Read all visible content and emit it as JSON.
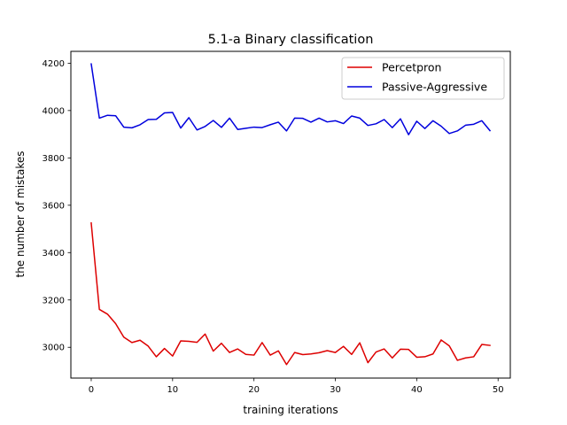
{
  "chart_data": {
    "type": "line",
    "title": "5.1-a Binary classification",
    "xlabel": "training iterations",
    "ylabel": "the number of mistakes",
    "xlim": [
      -2.5,
      51.5
    ],
    "ylim": [
      2870,
      4250
    ],
    "xticks": [
      0,
      10,
      20,
      30,
      40,
      50
    ],
    "yticks": [
      3000,
      3200,
      3400,
      3600,
      3800,
      4000,
      4200
    ],
    "grid": false,
    "legend": "top-right",
    "x": [
      0,
      1,
      2,
      3,
      4,
      5,
      6,
      7,
      8,
      9,
      10,
      11,
      12,
      13,
      14,
      15,
      16,
      17,
      18,
      19,
      20,
      21,
      22,
      23,
      24,
      25,
      26,
      27,
      28,
      29,
      30,
      31,
      32,
      33,
      34,
      35,
      36,
      37,
      38,
      39,
      40,
      41,
      42,
      43,
      44,
      45,
      46,
      47,
      48,
      49
    ],
    "series": [
      {
        "name": "Percetpron",
        "color": "#dd0000",
        "values": [
          3525,
          3160,
          3140,
          3100,
          3043,
          3020,
          3030,
          3005,
          2960,
          2995,
          2963,
          3027,
          3025,
          3021,
          3056,
          2984,
          3017,
          2978,
          2993,
          2970,
          2967,
          3020,
          2967,
          2985,
          2927,
          2978,
          2969,
          2972,
          2977,
          2986,
          2978,
          3004,
          2970,
          3019,
          2935,
          2980,
          2993,
          2955,
          2992,
          2991,
          2958,
          2960,
          2972,
          3031,
          3006,
          2945,
          2955,
          2960,
          3012,
          3008
        ]
      },
      {
        "name": "Passive-Aggressive",
        "color": "#0000dd",
        "values": [
          4197,
          3968,
          3980,
          3978,
          3930,
          3927,
          3940,
          3962,
          3963,
          3990,
          3992,
          3926,
          3970,
          3918,
          3933,
          3958,
          3929,
          3968,
          3920,
          3925,
          3930,
          3928,
          3940,
          3951,
          3914,
          3968,
          3967,
          3951,
          3968,
          3952,
          3957,
          3945,
          3977,
          3968,
          3937,
          3944,
          3962,
          3928,
          3965,
          3898,
          3955,
          3924,
          3957,
          3934,
          3903,
          3914,
          3938,
          3942,
          3957,
          3915
        ]
      }
    ]
  }
}
